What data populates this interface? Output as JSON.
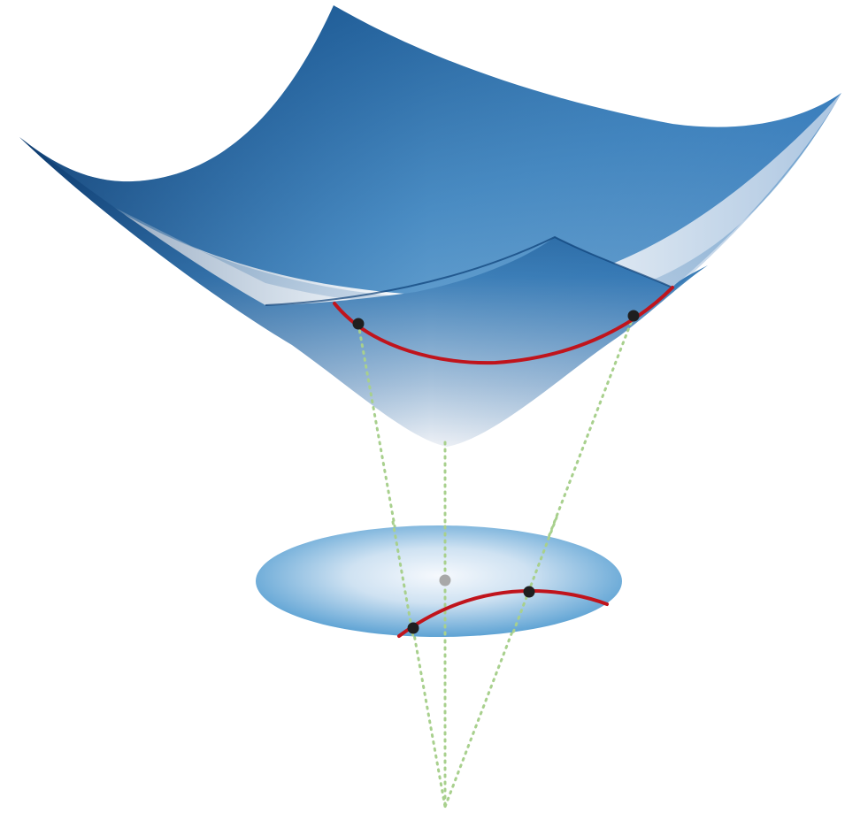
{
  "diagram": {
    "kind": "hyperboloid-to-disk-projection",
    "labels": [],
    "colors": {
      "surface_dark": "#0b3f78",
      "surface_mid": "#3f86bf",
      "surface_light": "#9cc3de",
      "surface_bottom": "#e8edf4",
      "disk_edge": "#6aaad6",
      "disk_center": "#f4f8fc",
      "geodesic": "#c0141c",
      "point": "#1f1f1f",
      "center_point": "#a8a8a8",
      "projection_line": "#a8d08d"
    }
  }
}
